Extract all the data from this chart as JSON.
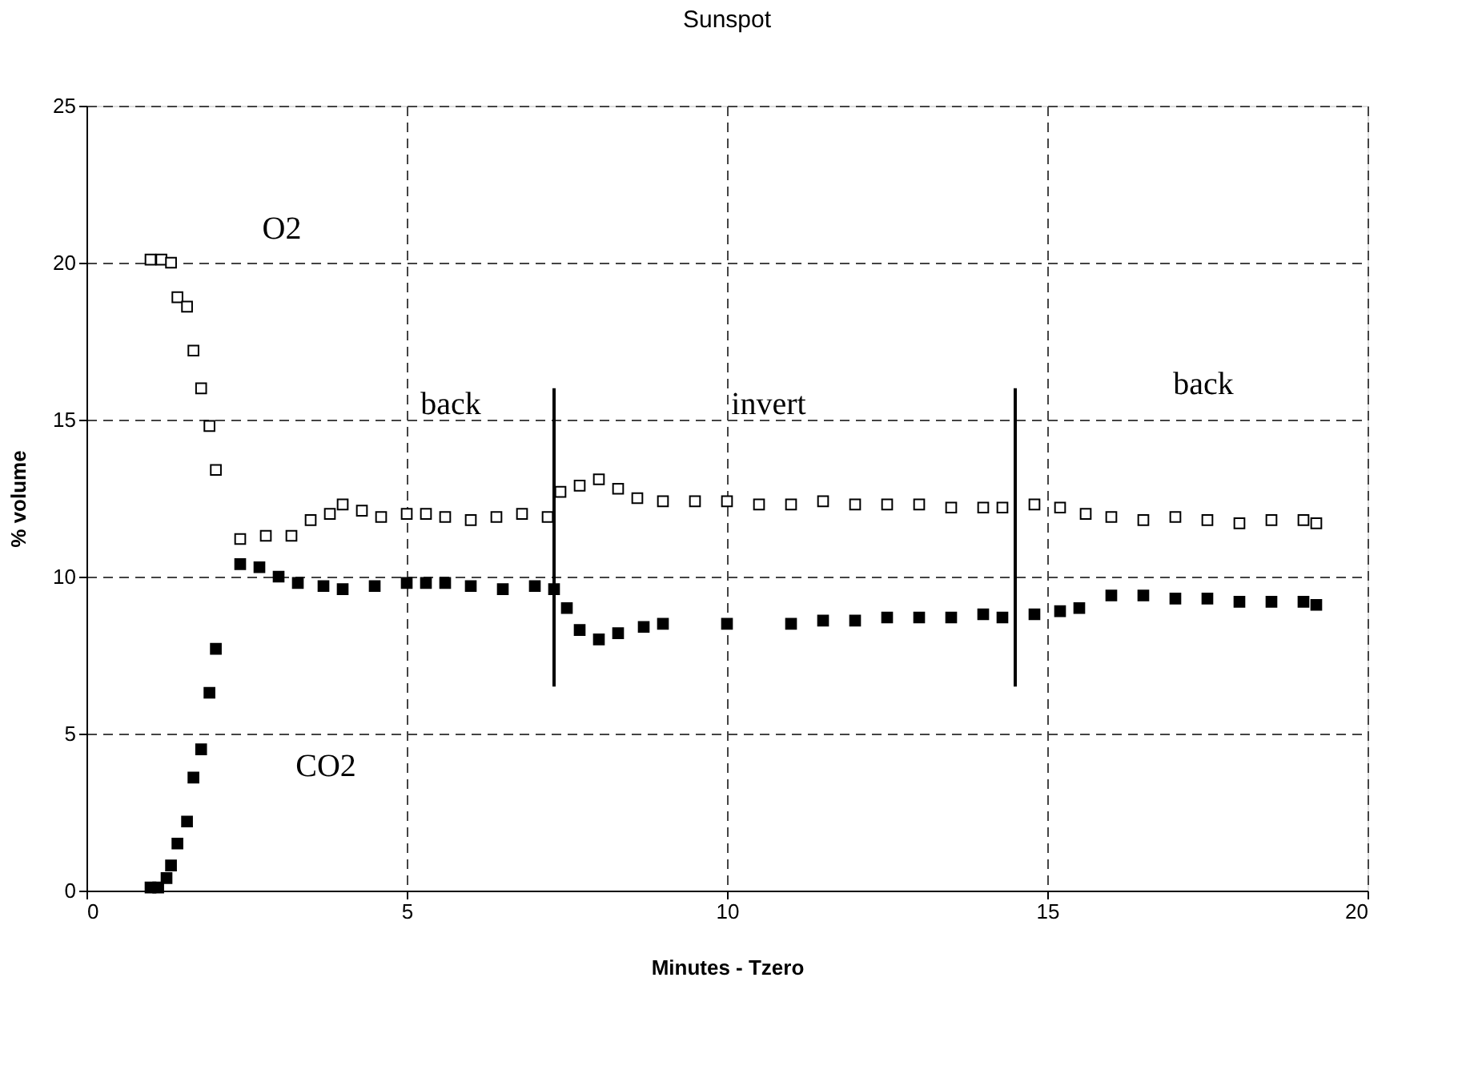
{
  "chart_data": {
    "type": "scatter",
    "title": "Sunspot",
    "xlabel": "Minutes - Tzero",
    "ylabel": "% volume",
    "xlim": [
      0,
      20
    ],
    "xticks": [
      0,
      5,
      10,
      15,
      20
    ],
    "ylim": [
      0,
      25
    ],
    "yticks": [
      0,
      5,
      10,
      15,
      20,
      25
    ],
    "grid": true,
    "marker": "square",
    "series": [
      {
        "color": "#ffffff",
        "x": [
          1.0,
          1.17,
          1.32,
          1.42,
          1.57,
          1.67,
          1.79,
          1.92,
          2.02,
          2.4,
          2.8,
          3.2,
          3.5,
          3.8,
          4.0,
          4.3,
          4.6,
          5.0,
          5.3,
          5.6,
          6.0,
          6.4,
          6.8,
          7.2,
          7.4,
          7.7,
          8.0,
          8.3,
          8.6,
          9.0,
          9.5,
          10.0,
          10.5,
          11.0,
          11.5,
          12.0,
          12.5,
          13.0,
          13.5,
          14.0,
          14.3,
          14.8,
          15.2,
          15.6,
          16.0,
          16.5,
          17.0,
          17.5,
          18.0,
          18.5,
          19.0,
          19.2
        ],
        "values": [
          20.1,
          20.1,
          20.0,
          18.9,
          18.6,
          17.2,
          16.0,
          14.8,
          13.4,
          11.2,
          11.3,
          11.3,
          11.8,
          12.0,
          12.3,
          12.1,
          11.9,
          12.0,
          12.0,
          11.9,
          11.8,
          11.9,
          12.0,
          11.9,
          12.7,
          12.9,
          13.1,
          12.8,
          12.5,
          12.4,
          12.4,
          12.4,
          12.3,
          12.3,
          12.4,
          12.3,
          12.3,
          12.3,
          12.2,
          12.2,
          12.2,
          12.3,
          12.2,
          12.0,
          11.9,
          11.8,
          11.9,
          11.8,
          11.7,
          11.8,
          11.8,
          11.7
        ]
      },
      {
        "color": "#000000",
        "x": [
          1.0,
          1.12,
          1.25,
          1.32,
          1.42,
          1.57,
          1.67,
          1.79,
          1.92,
          2.02,
          2.4,
          2.7,
          3.0,
          3.3,
          3.7,
          4.0,
          4.5,
          5.0,
          5.3,
          5.6,
          6.0,
          6.5,
          7.0,
          7.3,
          7.5,
          7.7,
          8.0,
          8.3,
          8.7,
          9.0,
          10.0,
          11.0,
          11.5,
          12.0,
          12.5,
          13.0,
          13.5,
          14.0,
          14.3,
          14.8,
          15.2,
          15.5,
          16.0,
          16.5,
          17.0,
          17.5,
          18.0,
          18.5,
          19.0,
          19.2
        ],
        "values": [
          0.1,
          0.1,
          0.4,
          0.8,
          1.5,
          2.2,
          3.6,
          4.5,
          6.3,
          7.7,
          10.4,
          10.3,
          10.0,
          9.8,
          9.7,
          9.6,
          9.7,
          9.8,
          9.8,
          9.8,
          9.7,
          9.6,
          9.7,
          9.6,
          9.0,
          8.3,
          8.0,
          8.2,
          8.4,
          8.5,
          8.5,
          8.5,
          8.6,
          8.6,
          8.7,
          8.7,
          8.7,
          8.8,
          8.7,
          8.8,
          8.9,
          9.0,
          9.4,
          9.4,
          9.3,
          9.3,
          9.2,
          9.2,
          9.2,
          9.1
        ]
      },
      {
        "type": "line",
        "color": "#000000",
        "marker": "none",
        "x": [
          7.3,
          7.3
        ],
        "values": [
          6.5,
          16.0
        ]
      },
      {
        "type": "line",
        "color": "#000000",
        "marker": "none",
        "x": [
          14.5,
          14.5
        ],
        "values": [
          6.5,
          16.0
        ]
      }
    ],
    "annotations": [
      "O2",
      "CO2",
      "back",
      "invert",
      "back"
    ]
  }
}
